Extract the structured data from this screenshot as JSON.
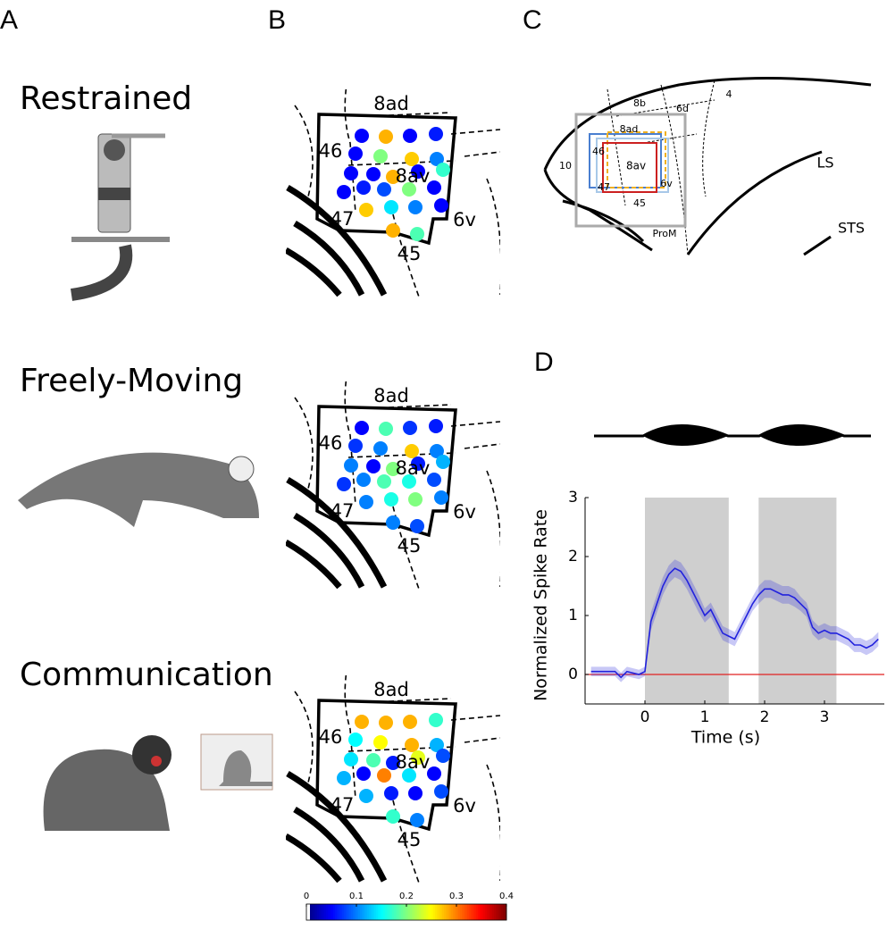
{
  "panel_labels": [
    "A",
    "B",
    "C",
    "D"
  ],
  "conditions": [
    {
      "label": "Restrained",
      "dot_values": [
        0.05,
        0.28,
        0.05,
        0.06,
        0.05,
        0.2,
        0.27,
        0.1,
        0.05,
        0.05,
        0.28,
        0.05,
        0.17,
        0.05,
        0.06,
        0.08,
        0.2,
        0.05,
        0.27,
        0.14,
        0.1,
        0.05,
        0.28,
        0.18
      ]
    },
    {
      "label": "Freely-Moving",
      "dot_values": [
        0.05,
        0.18,
        0.07,
        0.06,
        0.07,
        0.1,
        0.27,
        0.1,
        0.1,
        0.05,
        0.2,
        0.06,
        0.12,
        0.07,
        0.1,
        0.18,
        0.16,
        0.08,
        0.1,
        0.16,
        0.2,
        0.1,
        0.1,
        0.08
      ]
    },
    {
      "label": "Communication",
      "dot_values": [
        0.28,
        0.28,
        0.28,
        0.17,
        0.15,
        0.25,
        0.28,
        0.12,
        0.14,
        0.18,
        0.06,
        0.24,
        0.08,
        0.12,
        0.05,
        0.3,
        0.14,
        0.05,
        0.12,
        0.06,
        0.05,
        0.08,
        0.17,
        0.1
      ]
    }
  ],
  "map_area_labels": [
    "8ad",
    "46",
    "8av",
    "47",
    "6v",
    "45"
  ],
  "colorbar": {
    "lim": [
      0,
      0.4
    ],
    "ticks": [
      0,
      0.1,
      0.2,
      0.3,
      0.4
    ]
  },
  "brain_labels": [
    "8b",
    "6d",
    "4",
    "8ad",
    "10",
    "8av",
    "46",
    "LS",
    "6v",
    "47",
    "45",
    "STS",
    "ProM"
  ],
  "chart_data": {
    "type": "line",
    "xlabel": "Time (s)",
    "ylabel": "Normalized Spike Rate",
    "xlim": [
      -1,
      4
    ],
    "ylim": [
      -0.5,
      3
    ],
    "xticks": [
      0,
      1,
      2,
      3
    ],
    "yticks": [
      0,
      1,
      2,
      3
    ],
    "shaded_intervals": [
      [
        0,
        1.4
      ],
      [
        1.9,
        3.2
      ]
    ],
    "x": [
      -0.9,
      -0.7,
      -0.5,
      -0.4,
      -0.3,
      -0.1,
      0,
      0.1,
      0.2,
      0.3,
      0.4,
      0.5,
      0.6,
      0.7,
      0.8,
      0.9,
      1.0,
      1.1,
      1.2,
      1.3,
      1.4,
      1.5,
      1.6,
      1.7,
      1.8,
      1.9,
      2.0,
      2.1,
      2.2,
      2.3,
      2.4,
      2.5,
      2.6,
      2.7,
      2.8,
      2.9,
      3.0,
      3.1,
      3.2,
      3.3,
      3.4,
      3.5,
      3.6,
      3.7,
      3.8,
      3.9
    ],
    "series": [
      {
        "color": "#2222dd",
        "values": [
          0.05,
          0.05,
          0.05,
          -0.05,
          0.05,
          0.0,
          0.05,
          0.9,
          1.2,
          1.5,
          1.7,
          1.8,
          1.75,
          1.6,
          1.4,
          1.2,
          1.0,
          1.1,
          0.9,
          0.7,
          0.65,
          0.6,
          0.8,
          1.0,
          1.2,
          1.35,
          1.45,
          1.45,
          1.4,
          1.35,
          1.35,
          1.3,
          1.2,
          1.1,
          0.8,
          0.7,
          0.75,
          0.7,
          0.7,
          0.65,
          0.6,
          0.5,
          0.5,
          0.45,
          0.5,
          0.6
        ],
        "error": [
          0.08,
          0.08,
          0.08,
          0.08,
          0.08,
          0.08,
          0.08,
          0.15,
          0.15,
          0.15,
          0.15,
          0.15,
          0.15,
          0.15,
          0.15,
          0.15,
          0.12,
          0.12,
          0.12,
          0.12,
          0.12,
          0.12,
          0.12,
          0.12,
          0.12,
          0.15,
          0.15,
          0.15,
          0.15,
          0.15,
          0.15,
          0.15,
          0.12,
          0.12,
          0.12,
          0.12,
          0.12,
          0.12,
          0.12,
          0.12,
          0.12,
          0.12,
          0.12,
          0.12,
          0.12,
          0.12
        ]
      }
    ]
  }
}
